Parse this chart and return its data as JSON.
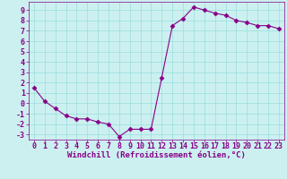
{
  "xlabel": "Windchill (Refroidissement éolien,°C)",
  "x_values": [
    0,
    1,
    2,
    3,
    4,
    5,
    6,
    7,
    8,
    9,
    10,
    11,
    12,
    13,
    14,
    15,
    16,
    17,
    18,
    19,
    20,
    21,
    22,
    23
  ],
  "y_values": [
    1.5,
    0.2,
    -0.5,
    -1.2,
    -1.5,
    -1.5,
    -1.8,
    -2.0,
    -3.2,
    -2.5,
    -2.5,
    -2.5,
    2.5,
    7.5,
    8.2,
    9.3,
    9.0,
    8.7,
    8.5,
    8.0,
    7.8,
    7.5,
    7.5,
    7.2
  ],
  "ylim": [
    -3.5,
    9.8
  ],
  "xlim": [
    -0.5,
    23.5
  ],
  "yticks": [
    -3,
    -2,
    -1,
    0,
    1,
    2,
    3,
    4,
    5,
    6,
    7,
    8,
    9
  ],
  "xticks": [
    0,
    1,
    2,
    3,
    4,
    5,
    6,
    7,
    8,
    9,
    10,
    11,
    12,
    13,
    14,
    15,
    16,
    17,
    18,
    19,
    20,
    21,
    22,
    23
  ],
  "line_color": "#880088",
  "marker": "D",
  "marker_size": 2.5,
  "bg_color": "#ccf0f0",
  "grid_color": "#99dddd",
  "label_fontsize": 6.5,
  "tick_fontsize": 6.0
}
